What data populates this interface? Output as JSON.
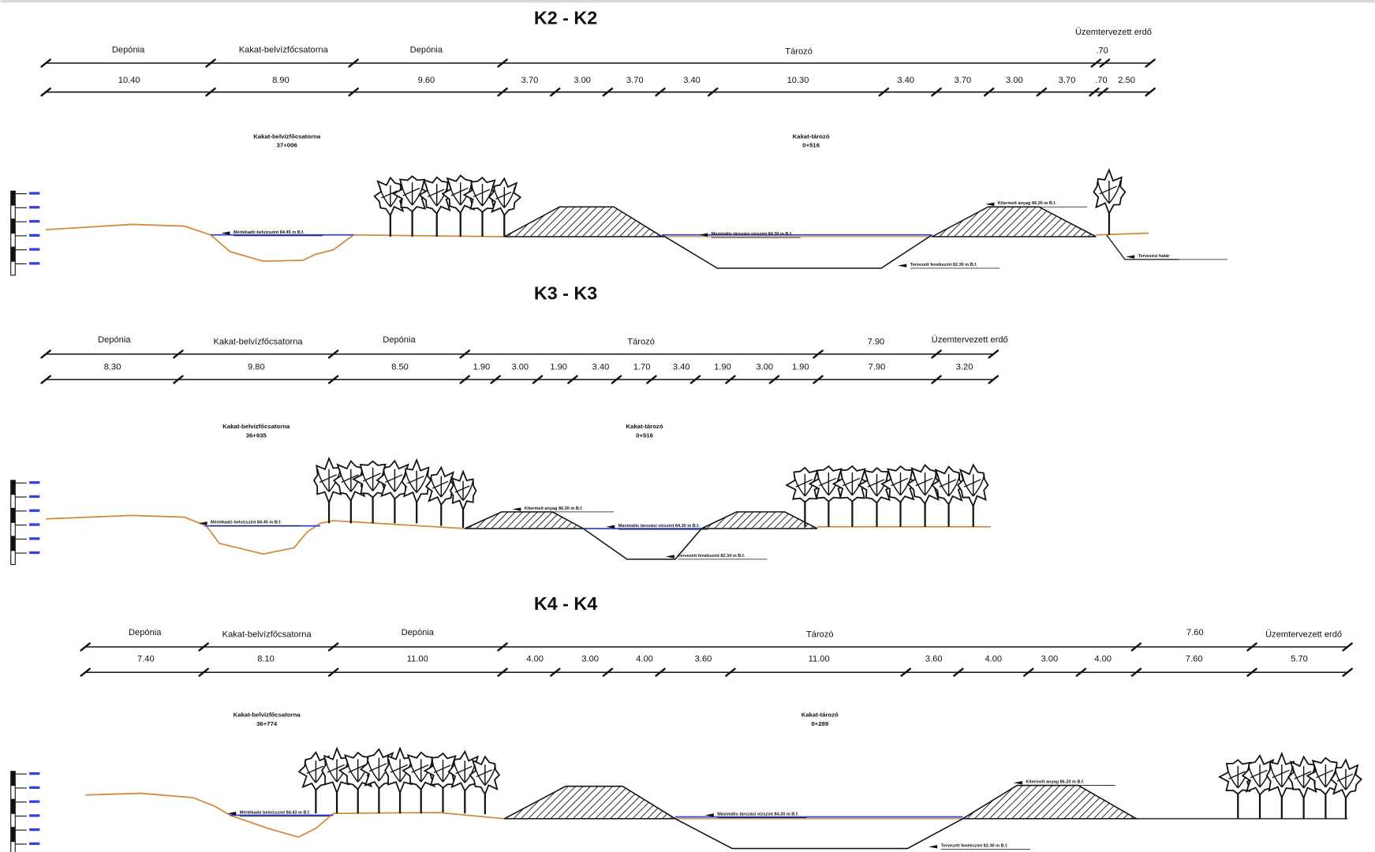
{
  "sections": [
    {
      "title": "K2 - K2",
      "top_labels": [
        "Depónia",
        "Kakat-belvízfőcsatorna",
        "Depónia",
        "Tározó",
        "Üzemtervezett erdő",
        ".70"
      ],
      "dimensions": [
        "10.40",
        "8.90",
        "9.60",
        "3.70",
        "3.00",
        "3.70",
        "3.40",
        "10.30",
        "3.40",
        "3.70",
        "3.00",
        "3.70",
        ".70",
        "2.50"
      ],
      "annotations": [
        {
          "name": "Kakat-belvízfőcsatorna",
          "station": "37+006"
        },
        {
          "name": "Kakat-tározó",
          "station": "0+516"
        }
      ],
      "levels": [
        "Mértékadó belvízszint 84.45 m B.f.",
        "Maximális tározási vízszint 84.30 m B.f.",
        "Tervezett fenékszint 82.30 m B.f.",
        "Kitermelt anyag 86.20 m B.f.",
        "Tervezési határ"
      ]
    },
    {
      "title": "K3 - K3",
      "top_labels": [
        "Depónia",
        "Kakat-belvízfőcsatorna",
        "Depónia",
        "Tározó",
        "7.90",
        "Üzemtervezett erdő"
      ],
      "dimensions": [
        "8.30",
        "9.80",
        "8.50",
        "1.90",
        "3.00",
        "1.90",
        "3.40",
        "1.70",
        "3.40",
        "1.90",
        "3.00",
        "1.90",
        "7.90",
        "3.20"
      ],
      "annotations": [
        {
          "name": "Kakat-belvízfőcsatorna",
          "station": "36+935"
        },
        {
          "name": "Kakat-tározó",
          "station": "0+516"
        }
      ],
      "levels": [
        "Mértékadó belvízszint 84.45 m B.f.",
        "Maximális tározási vízszint 84.30 m B.f.",
        "Tervezett fenékszint 82.34 m B.f.",
        "Kitermelt anyag 86.20 m B.f."
      ]
    },
    {
      "title": "K4 - K4",
      "top_labels": [
        "Depónia",
        "Kakat-belvízfőcsatorna",
        "Depónia",
        "Tározó",
        "7.60",
        "Üzemtervezett erdő"
      ],
      "dimensions": [
        "7.40",
        "8.10",
        "11.00",
        "4.00",
        "3.00",
        "4.00",
        "3.60",
        "11.00",
        "3.60",
        "4.00",
        "3.00",
        "4.00",
        "7.60",
        "5.70"
      ],
      "annotations": [
        {
          "name": "Kakat-belvízfőcsatorna",
          "station": "36+774"
        },
        {
          "name": "Kakat-tározó",
          "station": "0+289"
        }
      ],
      "levels": [
        "Mértékadó belvízszint 84.43 m B.f.",
        "Maximális tározási vízszint 84.30 m B.f.",
        "Tervezett fenékszint 82.30 m B.f.",
        "Kitermelt anyag 86.20 m B.f."
      ]
    }
  ]
}
